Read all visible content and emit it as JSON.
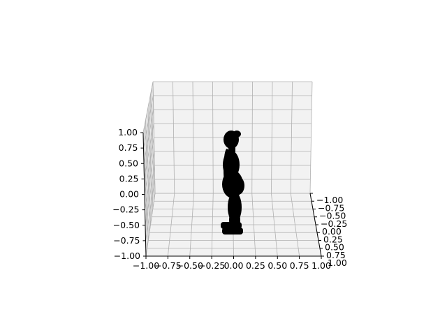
{
  "chart_data": {
    "type": "scatter",
    "projection": "3d",
    "title": "",
    "xlabel": "",
    "ylabel": "",
    "zlabel": "",
    "grid": true,
    "pane_color": "#f2f2f2",
    "grid_color": "#b0b0b0",
    "marker_color": "#000000",
    "xlim": [
      -1.0,
      1.0
    ],
    "ylim": [
      -1.0,
      1.0
    ],
    "zlim": [
      -1.0,
      1.0
    ],
    "x_ticks": [
      "−1.00",
      "−0.75",
      "−0.50",
      "−0.25",
      "0.00",
      "0.25",
      "0.50",
      "0.75",
      "1.00"
    ],
    "y_ticks": [
      "−1.00",
      "−0.75",
      "−0.50",
      "−0.25",
      "0.00",
      "0.25",
      "0.50",
      "0.75",
      "1.00"
    ],
    "z_ticks": [
      "−1.00",
      "−0.75",
      "−0.50",
      "−0.25",
      "0.00",
      "0.25",
      "0.50",
      "0.75",
      "1.00"
    ],
    "series": [
      {
        "description_of_points": "dense point cloud of a standing human figure seen from the side",
        "z_extent": [
          -0.75,
          0.55
        ]
      }
    ]
  }
}
